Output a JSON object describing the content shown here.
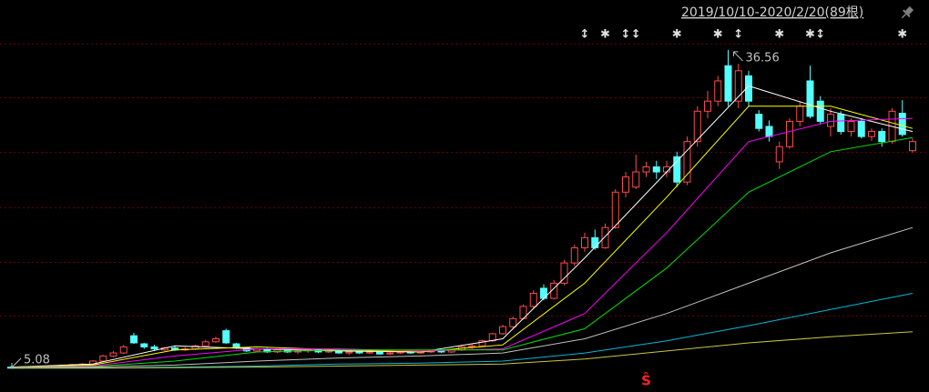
{
  "chart_data": {
    "type": "candlestick",
    "title": "2019/10/10-2020/2/20(89根)",
    "ylim": [
      2.74,
      41.5
    ],
    "up_color": "#ff4a4a",
    "down_color": "#54ffff",
    "open": [
      5.2,
      5.1,
      5.2,
      5.25,
      5.3,
      5.35,
      5.4,
      5.45,
      5.5,
      5.8,
      6.3,
      6.6,
      8.3,
      7.5,
      7.2,
      6.9,
      7.1,
      6.9,
      7.0,
      7.3,
      7.7,
      8.8,
      7.5,
      7.1,
      6.8,
      7.0,
      6.7,
      6.9,
      6.7,
      6.8,
      6.9,
      6.7,
      6.8,
      6.6,
      6.7,
      6.6,
      6.7,
      6.5,
      6.6,
      6.7,
      6.6,
      6.7,
      6.8,
      6.7,
      6.9,
      7.2,
      7.3,
      7.8,
      8.5,
      9.2,
      10.0,
      11.2,
      13.0,
      12.0,
      13.5,
      15.5,
      17.0,
      18.0,
      17.0,
      19.0,
      22.5,
      23.0,
      24.5,
      25.0,
      24.5,
      26.0,
      23.5,
      27.5,
      30.5,
      31.5,
      35.0,
      31.5,
      34.0,
      30.2,
      29.0,
      25.5,
      27.0,
      29.5,
      33.5,
      31.5,
      29.0,
      30.2,
      28.5,
      29.5,
      28.0,
      28.5,
      27.5,
      30.3,
      26.6
    ],
    "high": [
      5.3,
      5.25,
      5.3,
      5.35,
      5.4,
      5.45,
      5.5,
      5.6,
      5.9,
      6.4,
      6.8,
      7.4,
      8.6,
      7.6,
      7.4,
      7.2,
      7.3,
      7.2,
      7.4,
      7.9,
      8.2,
      9.0,
      7.6,
      7.2,
      7.1,
      7.1,
      7.0,
      7.0,
      6.9,
      7.0,
      7.0,
      6.9,
      6.9,
      6.8,
      6.8,
      6.8,
      6.8,
      6.7,
      6.8,
      6.8,
      6.8,
      6.9,
      6.9,
      7.0,
      7.4,
      7.5,
      7.9,
      8.6,
      9.4,
      10.2,
      11.4,
      12.8,
      13.4,
      13.8,
      15.8,
      17.3,
      18.5,
      18.8,
      19.4,
      22.8,
      24.5,
      26.2,
      25.5,
      25.6,
      25.6,
      26.5,
      28.0,
      31.0,
      32.5,
      34.0,
      36.56,
      35.2,
      34.5,
      30.6,
      29.6,
      27.5,
      29.8,
      31.5,
      35.0,
      32.0,
      30.8,
      30.5,
      29.8,
      29.8,
      28.8,
      28.8,
      30.8,
      31.6,
      27.8
    ],
    "low": [
      5.08,
      5.1,
      5.15,
      5.2,
      5.25,
      5.3,
      5.35,
      5.4,
      5.45,
      5.75,
      6.2,
      6.5,
      7.5,
      7.0,
      6.8,
      6.8,
      6.8,
      6.8,
      6.9,
      7.2,
      7.6,
      7.5,
      7.0,
      6.7,
      6.7,
      6.6,
      6.6,
      6.6,
      6.5,
      6.6,
      6.6,
      6.6,
      6.5,
      6.4,
      6.5,
      6.5,
      6.4,
      6.4,
      6.5,
      6.5,
      6.5,
      6.6,
      6.6,
      6.6,
      6.8,
      7.0,
      7.2,
      7.7,
      8.4,
      9.0,
      9.9,
      11.0,
      11.8,
      11.9,
      13.3,
      15.2,
      16.6,
      16.8,
      16.9,
      18.9,
      22.0,
      22.8,
      24.0,
      23.8,
      24.0,
      23.0,
      23.2,
      27.0,
      29.8,
      31.0,
      31.0,
      30.8,
      31.0,
      28.5,
      27.5,
      24.8,
      26.8,
      29.0,
      29.8,
      29.2,
      28.0,
      28.2,
      28.0,
      27.8,
      27.6,
      27.0,
      27.3,
      28.0,
      26.4
    ],
    "close": [
      5.1,
      5.2,
      5.25,
      5.3,
      5.35,
      5.4,
      5.45,
      5.5,
      5.8,
      6.3,
      6.6,
      7.2,
      7.6,
      7.2,
      7.0,
      7.1,
      6.9,
      7.0,
      7.3,
      7.7,
      8.0,
      7.6,
      7.1,
      6.8,
      7.0,
      6.7,
      6.9,
      6.7,
      6.8,
      6.9,
      6.7,
      6.8,
      6.6,
      6.7,
      6.6,
      6.7,
      6.5,
      6.6,
      6.7,
      6.6,
      6.7,
      6.8,
      6.7,
      6.9,
      7.2,
      7.3,
      7.8,
      8.5,
      9.2,
      10.0,
      11.2,
      12.5,
      12.0,
      13.5,
      15.5,
      17.0,
      18.0,
      17.0,
      19.0,
      22.5,
      24.0,
      24.5,
      25.0,
      24.5,
      25.0,
      23.5,
      27.5,
      30.5,
      31.5,
      33.5,
      31.5,
      34.5,
      31.5,
      28.8,
      28.0,
      27.0,
      29.5,
      31.0,
      30.0,
      29.5,
      30.2,
      28.5,
      29.5,
      28.0,
      28.5,
      27.5,
      30.5,
      28.2,
      27.5
    ],
    "lines": [
      {
        "color": "#ffffff",
        "x": [
          0,
          8,
          16,
          24,
          32,
          40,
          48,
          56,
          64,
          72,
          80,
          88
        ],
        "values": [
          5.2,
          5.5,
          7.3,
          7.0,
          6.8,
          6.7,
          8.0,
          16.0,
          24.5,
          33.0,
          30.5,
          28.5
        ]
      },
      {
        "color": "#ffff00",
        "x": [
          0,
          8,
          16,
          24,
          32,
          40,
          48,
          56,
          64,
          72,
          80,
          88
        ],
        "values": [
          5.2,
          5.4,
          6.9,
          7.2,
          6.9,
          6.7,
          7.4,
          13.5,
          22.0,
          31.0,
          31.0,
          28.8
        ]
      },
      {
        "color": "#ff00ff",
        "x": [
          0,
          8,
          16,
          24,
          32,
          40,
          48,
          56,
          64,
          72,
          80,
          88
        ],
        "values": [
          5.2,
          5.3,
          6.3,
          7.0,
          7.0,
          6.8,
          7.0,
          10.5,
          18.5,
          27.5,
          29.5,
          29.8
        ]
      },
      {
        "color": "#00e000",
        "x": [
          0,
          8,
          16,
          24,
          32,
          40,
          48,
          56,
          64,
          72,
          80,
          88
        ],
        "values": [
          5.2,
          5.25,
          5.8,
          6.7,
          6.9,
          6.9,
          6.9,
          9.0,
          15.0,
          22.5,
          26.5,
          27.9
        ]
      },
      {
        "color": "#c0c0c0",
        "x": [
          0,
          8,
          16,
          24,
          32,
          40,
          48,
          56,
          64,
          72,
          80,
          88
        ],
        "values": [
          5.2,
          5.2,
          5.4,
          5.8,
          6.1,
          6.3,
          6.6,
          8.0,
          10.5,
          13.5,
          16.5,
          19.0
        ]
      },
      {
        "color": "#00b8d8",
        "x": [
          0,
          8,
          16,
          24,
          32,
          40,
          48,
          56,
          64,
          72,
          80,
          88
        ],
        "values": [
          5.1,
          5.1,
          5.2,
          5.3,
          5.5,
          5.6,
          5.8,
          6.6,
          7.8,
          9.3,
          10.9,
          12.5
        ]
      },
      {
        "color": "#c8c840",
        "x": [
          0,
          8,
          16,
          24,
          32,
          40,
          48,
          56,
          64,
          72,
          80,
          88
        ],
        "values": [
          5.1,
          5.1,
          5.15,
          5.2,
          5.3,
          5.4,
          5.5,
          6.0,
          6.8,
          7.6,
          8.2,
          8.7
        ]
      }
    ],
    "markers": [
      {
        "index": 56,
        "symbol": "↕"
      },
      {
        "index": 58,
        "symbol": "✱"
      },
      {
        "index": 60,
        "symbol": "↕"
      },
      {
        "index": 61,
        "symbol": "↕"
      },
      {
        "index": 65,
        "symbol": "✱"
      },
      {
        "index": 69,
        "symbol": "✱"
      },
      {
        "index": 71,
        "symbol": "↕"
      },
      {
        "index": 75,
        "symbol": "✱"
      },
      {
        "index": 78,
        "symbol": "✱"
      },
      {
        "index": 79,
        "symbol": "↕"
      },
      {
        "index": 87,
        "symbol": "✱"
      }
    ],
    "signal": {
      "index": 62,
      "symbol": "Ŝ",
      "color": "#ff2020"
    }
  }
}
